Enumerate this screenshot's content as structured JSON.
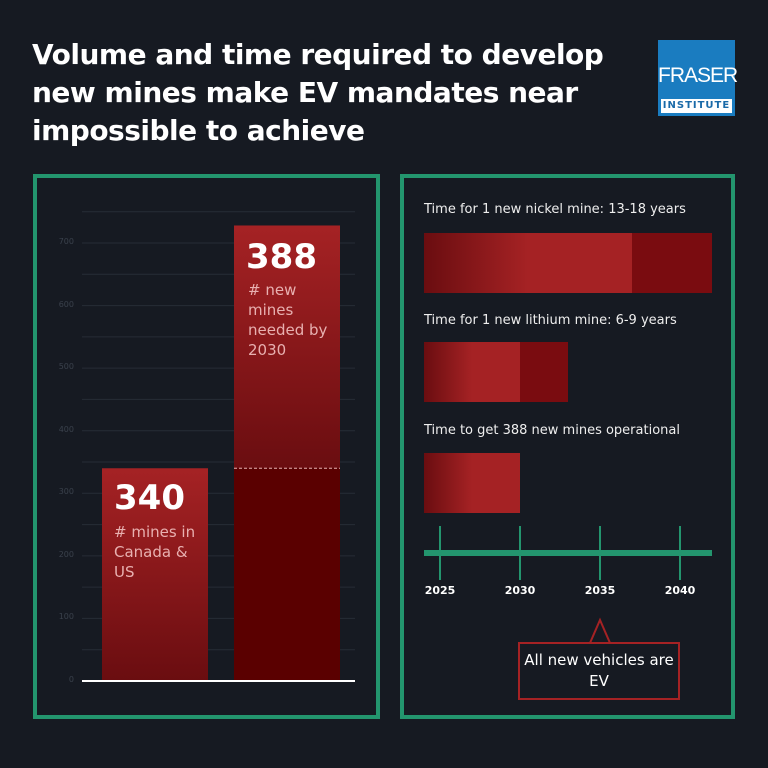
{
  "title": "Volume and time required to develop new mines make EV mandates near impossible to achieve",
  "logo": {
    "line1": "FRASER",
    "line2": "INSTITUTE",
    "color": "#1a7cc0"
  },
  "colors": {
    "border": "#23956e",
    "bar": "#a52224",
    "bar_dark": "#5a0000"
  },
  "chart_data": [
    {
      "type": "bar",
      "stacked": true,
      "ylim": [
        0,
        750
      ],
      "yticks": [
        0,
        100,
        200,
        300,
        400,
        500,
        600,
        700
      ],
      "bars": [
        {
          "value": 340,
          "big": "340",
          "label": "# mines in Canada & US"
        },
        {
          "base": 340,
          "value": 388,
          "big": "388",
          "label": "# new mines needed by 2030"
        }
      ]
    },
    {
      "type": "timeline",
      "xlim": [
        2024,
        2042
      ],
      "ticks": [
        2025,
        2030,
        2035,
        2040
      ],
      "rows": [
        {
          "label": "Time for 1 new nickel mine: 13-18 years",
          "start": 2024,
          "min_end": 2037,
          "max_end": 2042
        },
        {
          "label": "Time for 1 new lithium mine: 6-9 years",
          "start": 2024,
          "min_end": 2030,
          "max_end": 2033
        },
        {
          "label": "Time to get 388 new mines operational",
          "start": 2024,
          "min_end": 2030,
          "max_end": 2030
        }
      ],
      "annotation": {
        "year": 2035,
        "text": "All new vehicles are EV"
      }
    }
  ]
}
